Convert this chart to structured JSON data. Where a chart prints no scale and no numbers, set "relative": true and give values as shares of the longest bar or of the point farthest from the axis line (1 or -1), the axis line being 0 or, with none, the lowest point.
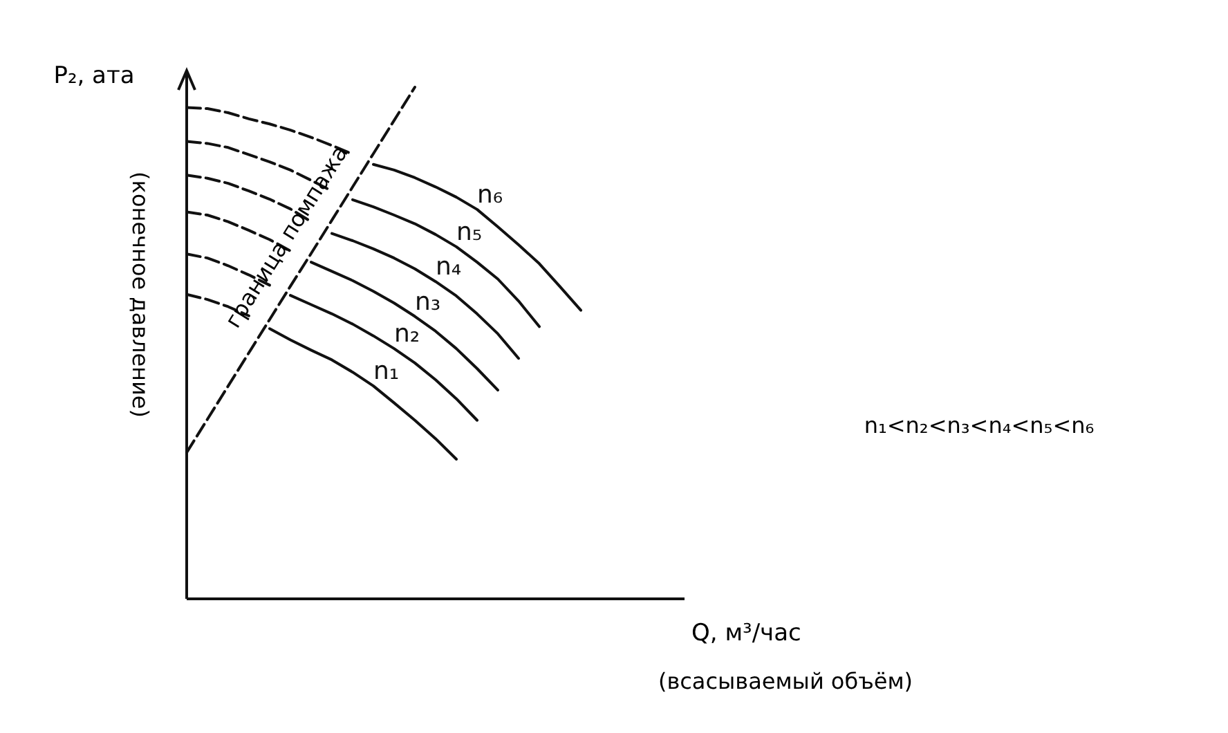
{
  "chart_data": {
    "type": "line",
    "relative": true,
    "ylabel": "P₂, ата",
    "xlabel": "Q, м³/час",
    "annotations": [
      "(конечное давление)",
      "(всасываемый объём)",
      "n₁<n₂<n₃<n₄<n₅<n₆",
      "граница помпажа"
    ],
    "categories": [
      null,
      null,
      null,
      null,
      null,
      null,
      null,
      null,
      null,
      null,
      null,
      null,
      null,
      null,
      null,
      null,
      null,
      null,
      null,
      null,
      null
    ],
    "series": [
      {
        "color": "#111111",
        "line_style": "dashed",
        "values": [
          0.96,
          0.958,
          0.95,
          0.938,
          0.928,
          0.916,
          0.902,
          0.886,
          0.869,
          null,
          null,
          null,
          null,
          null,
          null,
          null,
          null,
          null,
          null,
          null,
          null
        ]
      },
      {
        "name": "n₆",
        "color": "#111111",
        "line_style": "solid",
        "values": [
          null,
          null,
          null,
          null,
          null,
          null,
          null,
          null,
          null,
          0.849,
          0.838,
          0.823,
          0.805,
          0.785,
          0.761,
          0.727,
          0.692,
          0.655,
          0.61,
          0.564,
          null
        ]
      },
      {
        "color": "#111111",
        "line_style": "dashed",
        "values": [
          0.894,
          0.89,
          0.882,
          0.868,
          0.854,
          0.838,
          0.818,
          0.797,
          null,
          null,
          null,
          null,
          null,
          null,
          null,
          null,
          null,
          null,
          null,
          null,
          null
        ]
      },
      {
        "name": "n₅",
        "color": "#111111",
        "line_style": "solid",
        "values": [
          null,
          null,
          null,
          null,
          null,
          null,
          null,
          null,
          0.78,
          0.766,
          0.75,
          0.733,
          0.712,
          0.688,
          0.658,
          0.625,
          0.582,
          0.532,
          null,
          null,
          null
        ]
      },
      {
        "color": "#111111",
        "line_style": "dashed",
        "values": [
          0.828,
          0.822,
          0.812,
          0.797,
          0.781,
          0.762,
          0.737,
          null,
          null,
          null,
          null,
          null,
          null,
          null,
          null,
          null,
          null,
          null,
          null,
          null,
          null
        ]
      },
      {
        "name": "n₄",
        "color": "#111111",
        "line_style": "solid",
        "values": [
          null,
          null,
          null,
          null,
          null,
          null,
          null,
          0.714,
          0.7,
          0.684,
          0.666,
          0.645,
          0.62,
          0.592,
          0.557,
          0.518,
          0.47,
          null,
          null,
          null,
          null
        ]
      },
      {
        "color": "#111111",
        "line_style": "dashed",
        "values": [
          0.756,
          0.75,
          0.737,
          0.72,
          0.702,
          0.68,
          null,
          null,
          null,
          null,
          null,
          null,
          null,
          null,
          null,
          null,
          null,
          null,
          null,
          null,
          null
        ]
      },
      {
        "name": "n₃",
        "color": "#111111",
        "line_style": "solid",
        "values": [
          null,
          null,
          null,
          null,
          null,
          null,
          0.658,
          0.64,
          0.622,
          0.601,
          0.578,
          0.552,
          0.523,
          0.489,
          0.45,
          0.408,
          null,
          null,
          null,
          null,
          null
        ]
      },
      {
        "color": "#111111",
        "line_style": "dashed",
        "values": [
          0.674,
          0.666,
          0.651,
          0.633,
          0.613,
          null,
          null,
          null,
          null,
          null,
          null,
          null,
          null,
          null,
          null,
          null,
          null,
          null,
          null,
          null,
          null
        ]
      },
      {
        "name": "n₂",
        "color": "#111111",
        "line_style": "solid",
        "values": [
          null,
          null,
          null,
          null,
          null,
          0.593,
          0.575,
          0.557,
          0.537,
          0.514,
          0.489,
          0.461,
          0.428,
          0.391,
          0.349,
          null,
          null,
          null,
          null,
          null,
          null
        ]
      },
      {
        "color": "#111111",
        "line_style": "dashed",
        "values": [
          0.595,
          0.585,
          0.571,
          0.553,
          null,
          null,
          null,
          null,
          null,
          null,
          null,
          null,
          null,
          null,
          null,
          null,
          null,
          null,
          null,
          null,
          null
        ]
      },
      {
        "name": "n₁",
        "color": "#111111",
        "line_style": "solid",
        "values": [
          null,
          null,
          null,
          null,
          0.528,
          0.506,
          0.486,
          0.467,
          0.443,
          0.416,
          0.383,
          0.349,
          0.313,
          0.273,
          null,
          null,
          null,
          null,
          null,
          null,
          null
        ]
      },
      {
        "color": "#111111",
        "line_style": "dashed",
        "values": [
          0.286,
          0.351,
          0.416,
          0.481,
          0.546,
          0.611,
          0.675,
          0.74,
          0.805,
          0.87,
          0.935,
          1,
          null,
          null,
          null,
          null,
          null,
          null,
          null,
          null,
          null
        ]
      }
    ]
  }
}
